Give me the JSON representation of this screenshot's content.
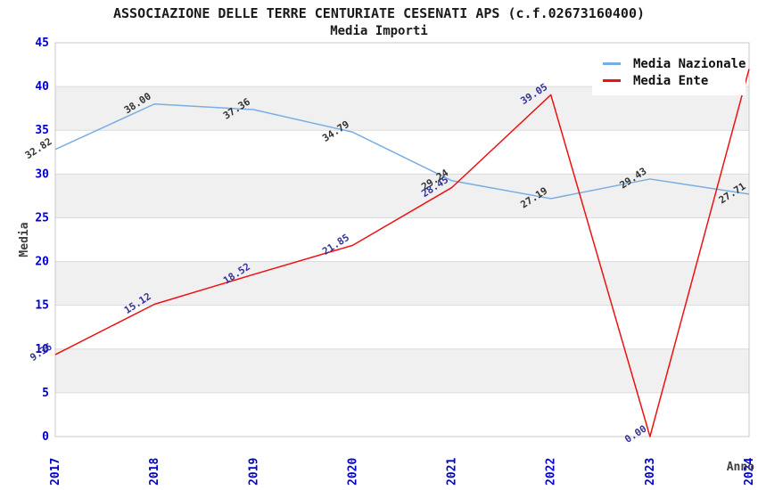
{
  "title": "ASSOCIAZIONE DELLE TERRE CENTURIATE CESENATI APS (c.f.02673160400)",
  "subtitle": "Media Importi",
  "legend": [
    {
      "label": "Media Nazionale",
      "color": "#79aee2"
    },
    {
      "label": "Media Ente",
      "color": "#ee1111"
    }
  ],
  "axes": {
    "y_label": "Media",
    "x_label": "Anno",
    "y_ticks": [
      0,
      5,
      10,
      15,
      20,
      25,
      30,
      35,
      40,
      45
    ],
    "tick_color": "#0000cc",
    "axis_title_color": "#404040"
  },
  "chart_data": {
    "type": "line",
    "title": "ASSOCIAZIONE DELLE TERRE CENTURIATE CESENATI APS (c.f.02673160400)",
    "subtitle": "Media Importi",
    "xlabel": "Anno",
    "ylabel": "Media",
    "ylim": [
      0,
      45
    ],
    "y_tick_step": 5,
    "grid": "horizontal",
    "band_colors": [
      "#ffffff",
      "#f0f0f0"
    ],
    "gridline_color": "#dcdcdc",
    "border_color": "#c8c8c8",
    "legend_position": "top-right",
    "categories": [
      "2017",
      "2018",
      "2019",
      "2020",
      "2021",
      "2022",
      "2023",
      "2024"
    ],
    "series": [
      {
        "name": "Media Nazionale",
        "color": "#79aee2",
        "label_color": "#333333",
        "values": [
          32.82,
          38.0,
          37.36,
          34.79,
          29.24,
          27.19,
          29.43,
          27.71
        ]
      },
      {
        "name": "Media Ente",
        "color": "#ee1111",
        "label_color": "#333399",
        "values": [
          9.36,
          15.12,
          18.52,
          21.85,
          28.45,
          39.05,
          0.0,
          42.0
        ]
      }
    ]
  }
}
